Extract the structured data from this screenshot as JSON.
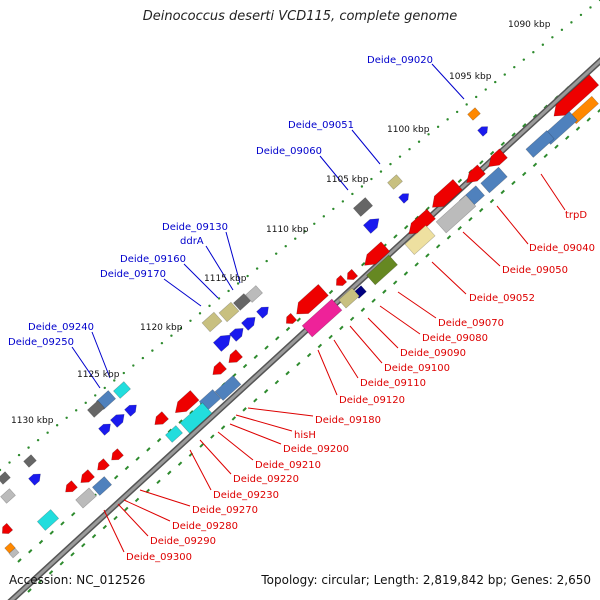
{
  "title": "Deinococcus deserti VCD115, complete genome",
  "footer": {
    "accession": "Accession: NC_012526",
    "summary": "Topology: circular; Length: 2,819,842 bp; Genes: 2,650"
  },
  "colors": {
    "backbone": "#7a7a7a",
    "tick": "#2e8b2e",
    "label_forward": "#0000cc",
    "label_reverse": "#dd0000",
    "gene_red": "#ee0000",
    "gene_blue": "#1a1aee",
    "gene_grey": "#666666",
    "gene_lightgrey": "#bbbbbb",
    "gene_steel": "#4f81bd",
    "gene_cyan": "#22dddd",
    "gene_khaki": "#c8c080",
    "gene_cream": "#eee0a0",
    "gene_olive": "#668822",
    "gene_pink": "#ee2299",
    "gene_orange": "#ff8800",
    "gene_navy": "#000080"
  },
  "kbp_labels": [
    "1090 kbp",
    "1095 kbp",
    "1100 kbp",
    "1105 kbp",
    "1110 kbp",
    "1115 kbp",
    "1120 kbp",
    "1125 kbp",
    "1130 kbp"
  ],
  "forward_labels": [
    "Deide_09020",
    "Deide_09051",
    "Deide_09060",
    "Deide_09130",
    "ddrA",
    "Deide_09160",
    "Deide_09170",
    "Deide_09240",
    "Deide_09250"
  ],
  "reverse_labels": [
    "trpD",
    "Deide_09040",
    "Deide_09050",
    "Deide_09052",
    "Deide_09070",
    "Deide_09080",
    "Deide_09090",
    "Deide_09100",
    "Deide_09110",
    "Deide_09120",
    "Deide_09180",
    "hisH",
    "Deide_09200",
    "Deide_09210",
    "Deide_09220",
    "Deide_09230",
    "Deide_09270",
    "Deide_09280",
    "Deide_09290",
    "Deide_09300"
  ]
}
